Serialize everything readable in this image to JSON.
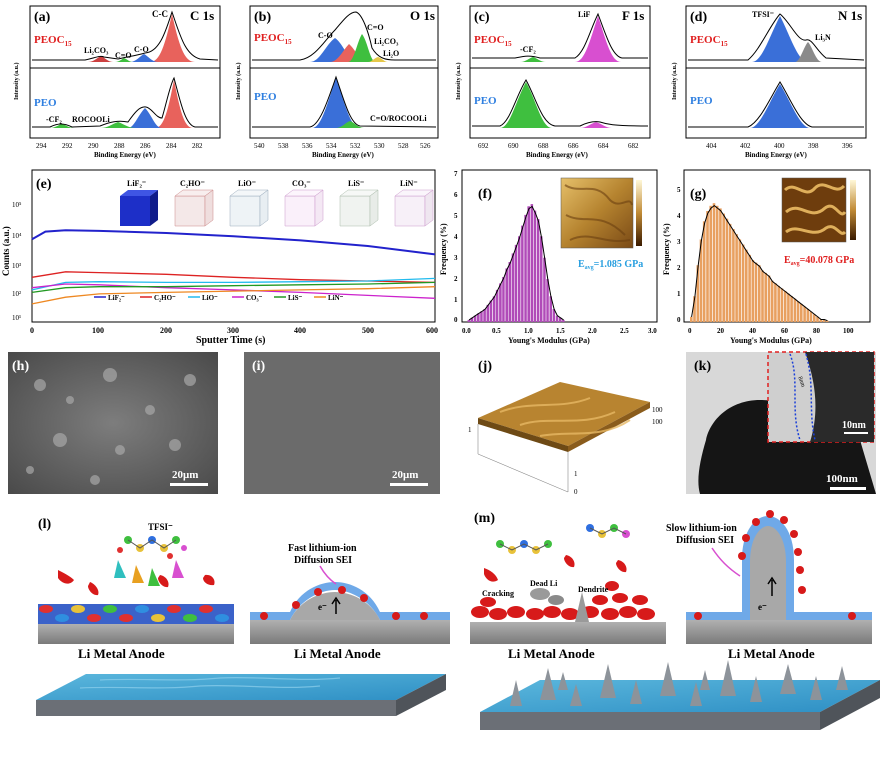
{
  "colors": {
    "red_fill": "#e8625c",
    "blue_fill": "#3a6fd8",
    "green_fill": "#3fbf3f",
    "magenta_fill": "#d84fd0",
    "gray_fill": "#8a8a8a",
    "peoc_text": "#e02020",
    "peo_text": "#2f7fe0",
    "value_text": "#2aa0e0",
    "value_text_red": "#e02020",
    "afm_gold": "#b98a35",
    "sei_blue": "#6fa9e8",
    "li_red": "#d71a1a",
    "anode_gray": "#8e8e8e"
  },
  "panels": {
    "a": {
      "tag": "(a)",
      "title": "C 1s",
      "top_sample": "PEOC",
      "top_sub": "15",
      "bottom_sample": "PEO",
      "ylabel": "Intensity (a.u.)",
      "xlabel": "Binding Energy (eV)",
      "xticks": [
        "294",
        "292",
        "290",
        "288",
        "286",
        "284",
        "282"
      ],
      "top_labels": {
        "cc": "C-C",
        "co": "C-O",
        "c_o": "C=O",
        "li2co3": "Li₂CO₃"
      },
      "bottom_labels": {
        "cf2": "-CF₂",
        "rocooli": "ROCOOLi"
      }
    },
    "b": {
      "tag": "(b)",
      "title": "O 1s",
      "top_sample": "PEOC",
      "top_sub": "15",
      "bottom_sample": "PEO",
      "ylabel": "Intensity (a.u.)",
      "xlabel": "Binding Energy (eV)",
      "xticks": [
        "540",
        "538",
        "536",
        "534",
        "532",
        "530",
        "528",
        "526"
      ],
      "top_labels": {
        "co": "C-O",
        "c_o": "C=O",
        "li2co3": "Li₂CO₃",
        "li2o": "Li₂O"
      },
      "bottom_labels": {
        "c_o_rocooli": "C=O/ROCOOLi"
      }
    },
    "c": {
      "tag": "(c)",
      "title": "F 1s",
      "top_sample": "PEOC",
      "top_sub": "15",
      "bottom_sample": "PEO",
      "ylabel": "Intensity (a.u.)",
      "xlabel": "Binding Energy (eV)",
      "xticks": [
        "692",
        "690",
        "688",
        "686",
        "684",
        "682"
      ],
      "top_labels": {
        "lif": "LiF",
        "cf2": "-CF₂"
      }
    },
    "d": {
      "tag": "(d)",
      "title": "N 1s",
      "top_sample": "PEOC",
      "top_sub": "15",
      "bottom_sample": "PEO",
      "ylabel": "Intensity (a.u.)",
      "xlabel": "Binding Energy (eV)",
      "xticks": [
        "404",
        "402",
        "400",
        "398",
        "396"
      ],
      "top_labels": {
        "tfsi": "TFSI⁻",
        "li3n": "Li₃N"
      }
    },
    "e": {
      "tag": "(e)",
      "ylabel": "Counts (a.u.)",
      "xlabel": "Sputter Time (s)",
      "yticks": [
        "10⁵",
        "10⁴",
        "10³",
        "10²",
        "10¹"
      ],
      "xticks": [
        "0",
        "100",
        "200",
        "300",
        "400",
        "500",
        "600"
      ],
      "legend": [
        "LiF₂⁻",
        "C₂HO⁻",
        "LiO⁻",
        "CO₃⁻",
        "LiS⁻",
        "LiN⁻"
      ],
      "cube_labels": [
        "LiF₂⁻",
        "C₂HO⁻",
        "LiO⁻",
        "CO₃⁻",
        "LiS⁻",
        "LiN⁻"
      ]
    },
    "f": {
      "tag": "(f)",
      "ylabel": "Frequency (%)",
      "xlabel": "Young's Modulus (GPa)",
      "xticks": [
        "0.0",
        "0.5",
        "1.0",
        "1.5",
        "2.0",
        "2.5",
        "3.0"
      ],
      "yticks": [
        "0",
        "1",
        "2",
        "3",
        "4",
        "5",
        "6",
        "7"
      ],
      "value_label": "Eavg=1.085 GPa",
      "value_prefix": "E",
      "value_sub": "avg",
      "value_rest": "=1.085 GPa"
    },
    "g": {
      "tag": "(g)",
      "ylabel": "Frequency (%)",
      "xlabel": "Young's Modulus (GPa)",
      "xticks": [
        "0",
        "20",
        "40",
        "60",
        "80",
        "100"
      ],
      "yticks": [
        "0",
        "1",
        "2",
        "3",
        "4",
        "5"
      ],
      "value_prefix": "E",
      "value_sub": "avg",
      "value_rest": "=40.078 GPa"
    },
    "h": {
      "tag": "(h)",
      "scale": "20μm"
    },
    "i": {
      "tag": "(i)",
      "scale": "20μm"
    },
    "j": {
      "tag": "(j)",
      "ticks": [
        "100",
        "100",
        "1",
        "0",
        "1"
      ]
    },
    "k": {
      "tag": "(k)",
      "scale_main": "100nm",
      "scale_inset": "10nm",
      "inset_label": "8nm"
    },
    "l": {
      "tag": "(l)",
      "anion": "TFSI⁻",
      "anode": "Li Metal Anode",
      "anode2": "Li Metal Anode",
      "sei_title_1": "Fast lithium-ion",
      "sei_title_2": "Diffusion SEI",
      "electron": "e⁻",
      "li": "Li⁺"
    },
    "m": {
      "tag": "(m)",
      "anode": "Li Metal Anode",
      "anode2": "Li Metal Anode",
      "sei_title_1": "Slow lithium-ion",
      "sei_title_2": "Diffusion SEI",
      "dead_li": "Dead Li",
      "cracking": "Cracking",
      "dendrite": "Dendrite",
      "electron": "e⁻",
      "li": "Li⁺"
    }
  },
  "chart_data": [
    {
      "type": "line",
      "title": "C 1s",
      "xlabel": "Binding Energy (eV)",
      "ylabel": "Intensity (a.u.)",
      "xlim": [
        294,
        282
      ],
      "series": [
        {
          "name": "PEOC15",
          "peaks": [
            {
              "label": "C-C",
              "center": 284.8,
              "height": 1.0
            },
            {
              "label": "C-O",
              "center": 286.5,
              "height": 0.18
            },
            {
              "label": "C=O",
              "center": 288.0,
              "height": 0.06
            },
            {
              "label": "Li₂CO₃",
              "center": 290.0,
              "height": 0.1
            }
          ]
        },
        {
          "name": "PEO",
          "peaks": [
            {
              "label": "C-C",
              "center": 284.8,
              "height": 1.0
            },
            {
              "label": "C-O",
              "center": 286.5,
              "height": 0.55
            },
            {
              "label": "ROCOOLi",
              "center": 289.0,
              "height": 0.08
            },
            {
              "label": "-CF₂",
              "center": 292.5,
              "height": 0.07
            }
          ]
        }
      ]
    },
    {
      "type": "line",
      "title": "O 1s",
      "xlabel": "Binding Energy (eV)",
      "ylabel": "Intensity (a.u.)",
      "xlim": [
        540,
        526
      ],
      "series": [
        {
          "name": "PEOC15",
          "peaks": [
            {
              "label": "C-O",
              "center": 533.2,
              "height": 0.55
            },
            {
              "label": "C=O",
              "center": 532.0,
              "height": 0.45
            },
            {
              "label": "Li₂CO₃",
              "center": 531.2,
              "height": 0.6
            },
            {
              "label": "Li₂O",
              "center": 529.8,
              "height": 0.15
            }
          ]
        },
        {
          "name": "PEO",
          "peaks": [
            {
              "label": "C-O",
              "center": 532.8,
              "height": 1.0
            },
            {
              "label": "C=O/ROCOOLi",
              "center": 531.5,
              "height": 0.15
            }
          ]
        }
      ]
    },
    {
      "type": "line",
      "title": "F 1s",
      "xlabel": "Binding Energy (eV)",
      "ylabel": "Intensity (a.u.)",
      "xlim": [
        692,
        682
      ],
      "series": [
        {
          "name": "PEOC15",
          "peaks": [
            {
              "label": "LiF",
              "center": 684.8,
              "height": 1.0
            },
            {
              "label": "-CF₂",
              "center": 688.8,
              "height": 0.12
            }
          ]
        },
        {
          "name": "PEO",
          "peaks": [
            {
              "label": "-CF₂",
              "center": 688.8,
              "height": 1.0
            },
            {
              "label": "LiF",
              "center": 684.8,
              "height": 0.15
            }
          ]
        }
      ]
    },
    {
      "type": "line",
      "title": "N 1s",
      "xlabel": "Binding Energy (eV)",
      "ylabel": "Intensity (a.u.)",
      "xlim": [
        405,
        395
      ],
      "series": [
        {
          "name": "PEOC15",
          "peaks": [
            {
              "label": "TFSI⁻",
              "center": 400.0,
              "height": 1.0
            },
            {
              "label": "Li₃N",
              "center": 398.2,
              "height": 0.35
            }
          ]
        },
        {
          "name": "PEO",
          "peaks": [
            {
              "label": "TFSI⁻",
              "center": 399.7,
              "height": 1.0
            }
          ]
        }
      ]
    },
    {
      "type": "line",
      "xlabel": "Sputter Time (s)",
      "ylabel": "Counts (a.u.)",
      "yscale": "log",
      "xlim": [
        0,
        600
      ],
      "ylim": [
        10,
        100000
      ],
      "series": [
        {
          "name": "LiF₂⁻",
          "color": "#2222cc",
          "x": [
            0,
            20,
            50,
            100,
            200,
            300,
            400,
            500,
            600
          ],
          "y": [
            1500,
            2400,
            2600,
            2500,
            2200,
            1800,
            1400,
            1000,
            600
          ]
        },
        {
          "name": "C₂HO⁻",
          "color": "#dd2222",
          "x": [
            0,
            50,
            100,
            200,
            300,
            400,
            500,
            600
          ],
          "y": [
            150,
            210,
            200,
            180,
            150,
            130,
            120,
            110
          ]
        },
        {
          "name": "LiO⁻",
          "color": "#22bbee",
          "x": [
            0,
            50,
            100,
            200,
            300,
            400,
            500,
            600
          ],
          "y": [
            70,
            110,
            115,
            110,
            110,
            115,
            120,
            140
          ]
        },
        {
          "name": "CO₃⁻",
          "color": "#cc22cc",
          "x": [
            0,
            50,
            100,
            200,
            300,
            400,
            500,
            600
          ],
          "y": [
            80,
            100,
            95,
            80,
            70,
            60,
            50,
            42
          ]
        },
        {
          "name": "LiS⁻",
          "color": "#229922",
          "x": [
            0,
            50,
            100,
            200,
            300,
            400,
            500,
            600
          ],
          "y": [
            60,
            80,
            85,
            85,
            90,
            95,
            100,
            110
          ]
        },
        {
          "name": "LiN⁻",
          "color": "#ee8822",
          "x": [
            0,
            50,
            100,
            200,
            300,
            400,
            500,
            600
          ],
          "y": [
            30,
            45,
            55,
            60,
            65,
            70,
            75,
            85
          ]
        }
      ]
    },
    {
      "type": "bar",
      "xlabel": "Young's Modulus (GPa)",
      "ylabel": "Frequency (%)",
      "xlim": [
        0,
        3
      ],
      "ylim": [
        0,
        7
      ],
      "bin_start": 0.05,
      "bin_width": 0.05,
      "values": [
        0.1,
        0.2,
        0.3,
        0.4,
        0.5,
        0.6,
        0.8,
        1.0,
        1.2,
        1.5,
        1.8,
        2.1,
        2.5,
        2.8,
        3.2,
        3.6,
        4.0,
        4.5,
        5.0,
        5.4,
        5.5,
        5.2,
        4.8,
        4.0,
        3.0,
        2.0,
        1.2,
        0.6,
        0.3,
        0.2,
        0.1
      ],
      "annotation": "Eavg=1.085 GPa"
    },
    {
      "type": "bar",
      "xlabel": "Young's Modulus (GPa)",
      "ylabel": "Frequency (%)",
      "xlim": [
        0,
        110
      ],
      "ylim": [
        0,
        5.5
      ],
      "bin_start": 1,
      "bin_width": 2,
      "values": [
        0.2,
        1.0,
        2.2,
        3.2,
        3.9,
        4.3,
        4.5,
        4.6,
        4.5,
        4.4,
        4.2,
        4.0,
        3.8,
        3.6,
        3.4,
        3.2,
        3.0,
        2.8,
        2.6,
        2.4,
        2.3,
        2.2,
        2.0,
        1.9,
        1.8,
        1.6,
        1.5,
        1.4,
        1.3,
        1.2,
        1.1,
        1.0,
        0.9,
        0.8,
        0.7,
        0.6,
        0.5,
        0.4,
        0.3,
        0.2,
        0.1,
        0.1,
        0.05
      ],
      "annotation": "Eavg=40.078 GPa"
    }
  ]
}
